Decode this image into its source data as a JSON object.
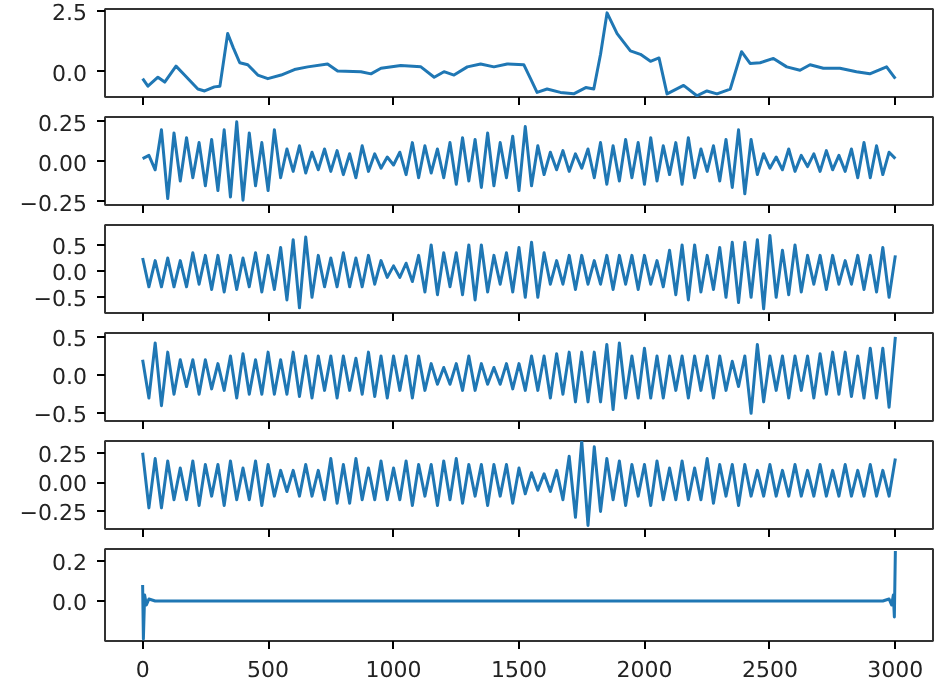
{
  "chart_data": [
    {
      "type": "line",
      "color": "#1f77b4",
      "tick_labels": "y",
      "xlim": [
        -150,
        3150
      ],
      "xticks": [
        0,
        500,
        1000,
        1500,
        2000,
        2500,
        3000
      ],
      "ylim": [
        -1.05,
        2.6
      ],
      "yticks": [
        {
          "value": 0,
          "label": "0.0"
        },
        {
          "value": 2.5,
          "label": "2.5"
        }
      ],
      "x": [
        0,
        21,
        61,
        88,
        133,
        167,
        220,
        247,
        286,
        308,
        339,
        361,
        387,
        419,
        459,
        499,
        552,
        605,
        658,
        737,
        777,
        870,
        910,
        950,
        1029,
        1109,
        1162,
        1201,
        1241,
        1294,
        1347,
        1400,
        1453,
        1519,
        1546,
        1572,
        1612,
        1665,
        1718,
        1766,
        1798,
        1825,
        1851,
        1891,
        1944,
        1984,
        2024,
        2058,
        2090,
        2156,
        2209,
        2249,
        2289,
        2342,
        2387,
        2421,
        2461,
        2514,
        2567,
        2620,
        2660,
        2713,
        2779,
        2845,
        2898,
        2965,
        3000
      ],
      "values": [
        -0.29,
        -0.6,
        -0.23,
        -0.43,
        0.23,
        -0.14,
        -0.72,
        -0.8,
        -0.63,
        -0.6,
        1.58,
        1.0,
        0.37,
        0.29,
        -0.14,
        -0.29,
        -0.14,
        0.09,
        0.2,
        0.32,
        0.03,
        0.0,
        -0.09,
        0.14,
        0.26,
        0.2,
        -0.23,
        0.0,
        -0.14,
        0.2,
        0.32,
        0.2,
        0.32,
        0.29,
        -0.29,
        -0.86,
        -0.72,
        -0.86,
        -0.92,
        -0.66,
        -0.72,
        0.72,
        2.44,
        1.58,
        0.86,
        0.72,
        0.43,
        0.57,
        -0.92,
        -0.57,
        -1.0,
        -0.8,
        -0.92,
        -0.72,
        0.83,
        0.34,
        0.37,
        0.55,
        0.2,
        0.06,
        0.29,
        0.14,
        0.14,
        0.0,
        -0.09,
        0.2,
        -0.29
      ]
    },
    {
      "type": "line",
      "color": "#1f77b4",
      "tick_labels": "y",
      "xlim": [
        -150,
        3150
      ],
      "xticks": [
        0,
        500,
        1000,
        1500,
        2000,
        2500,
        3000
      ],
      "ylim": [
        -0.27,
        0.28
      ],
      "yticks": [
        {
          "value": -0.25,
          "label": "−0.25"
        },
        {
          "value": 0,
          "label": "0.00"
        },
        {
          "value": 0.25,
          "label": "0.25"
        }
      ],
      "x": [
        0,
        25,
        50,
        75,
        100,
        125,
        150,
        175,
        200,
        225,
        250,
        275,
        300,
        325,
        350,
        375,
        400,
        425,
        450,
        475,
        500,
        525,
        550,
        575,
        600,
        625,
        650,
        675,
        700,
        725,
        750,
        775,
        800,
        825,
        850,
        875,
        900,
        925,
        950,
        975,
        1000,
        1025,
        1050,
        1075,
        1100,
        1125,
        1150,
        1175,
        1200,
        1225,
        1250,
        1275,
        1300,
        1325,
        1350,
        1375,
        1400,
        1425,
        1450,
        1475,
        1500,
        1525,
        1550,
        1575,
        1600,
        1625,
        1650,
        1675,
        1700,
        1725,
        1750,
        1775,
        1800,
        1825,
        1850,
        1875,
        1900,
        1925,
        1950,
        1975,
        2000,
        2025,
        2050,
        2075,
        2100,
        2125,
        2150,
        2175,
        2200,
        2225,
        2250,
        2275,
        2300,
        2325,
        2350,
        2375,
        2400,
        2425,
        2450,
        2475,
        2500,
        2525,
        2550,
        2575,
        2600,
        2625,
        2650,
        2675,
        2700,
        2725,
        2750,
        2775,
        2800,
        2825,
        2850,
        2875,
        2900,
        2925,
        2950,
        2975,
        3000
      ],
      "values": [
        0.02,
        0.04,
        -0.05,
        0.2,
        -0.23,
        0.18,
        -0.12,
        0.15,
        -0.1,
        0.12,
        -0.15,
        0.14,
        -0.18,
        0.2,
        -0.22,
        0.25,
        -0.24,
        0.18,
        -0.15,
        0.12,
        -0.18,
        0.2,
        -0.1,
        0.08,
        -0.06,
        0.1,
        -0.07,
        0.06,
        -0.05,
        0.08,
        -0.06,
        0.07,
        -0.08,
        0.05,
        -0.1,
        0.1,
        -0.06,
        0.05,
        -0.04,
        0.03,
        -0.02,
        0.06,
        -0.08,
        0.12,
        -0.1,
        0.1,
        -0.07,
        0.08,
        -0.1,
        0.12,
        -0.14,
        0.15,
        -0.12,
        0.14,
        -0.16,
        0.18,
        -0.15,
        0.12,
        -0.1,
        0.16,
        -0.18,
        0.22,
        -0.15,
        0.1,
        -0.08,
        0.06,
        -0.05,
        0.07,
        -0.06,
        0.05,
        -0.04,
        0.08,
        -0.1,
        0.12,
        -0.14,
        0.1,
        -0.12,
        0.14,
        -0.1,
        0.12,
        -0.14,
        0.15,
        -0.12,
        0.1,
        -0.08,
        0.12,
        -0.14,
        0.15,
        -0.1,
        0.08,
        -0.06,
        0.1,
        -0.12,
        0.14,
        -0.16,
        0.2,
        -0.2,
        0.14,
        -0.08,
        0.05,
        -0.04,
        0.03,
        -0.05,
        0.08,
        -0.06,
        0.04,
        -0.03,
        0.05,
        -0.06,
        0.07,
        -0.05,
        0.04,
        -0.06,
        0.08,
        -0.1,
        0.12,
        -0.1,
        0.1,
        -0.08,
        0.06,
        0.02
      ]
    },
    {
      "type": "line",
      "color": "#1f77b4",
      "tick_labels": "y",
      "xlim": [
        -150,
        3150
      ],
      "xticks": [
        0,
        500,
        1000,
        1500,
        2000,
        2500,
        3000
      ],
      "ylim": [
        -0.8,
        0.88
      ],
      "yticks": [
        {
          "value": -0.5,
          "label": "−0.5"
        },
        {
          "value": 0,
          "label": "0.0"
        },
        {
          "value": 0.5,
          "label": "0.5"
        }
      ],
      "x": [
        0,
        25,
        50,
        75,
        100,
        125,
        150,
        175,
        200,
        225,
        250,
        275,
        300,
        325,
        350,
        375,
        400,
        425,
        450,
        475,
        500,
        525,
        550,
        575,
        600,
        625,
        650,
        675,
        700,
        725,
        750,
        775,
        800,
        825,
        850,
        875,
        900,
        925,
        950,
        975,
        1000,
        1025,
        1050,
        1075,
        1100,
        1125,
        1150,
        1175,
        1200,
        1225,
        1250,
        1275,
        1300,
        1325,
        1350,
        1375,
        1400,
        1425,
        1450,
        1475,
        1500,
        1525,
        1550,
        1575,
        1600,
        1625,
        1650,
        1675,
        1700,
        1725,
        1750,
        1775,
        1800,
        1825,
        1850,
        1875,
        1900,
        1925,
        1950,
        1975,
        2000,
        2025,
        2050,
        2075,
        2100,
        2125,
        2150,
        2175,
        2200,
        2225,
        2250,
        2275,
        2300,
        2325,
        2350,
        2375,
        2400,
        2425,
        2450,
        2475,
        2500,
        2525,
        2550,
        2575,
        2600,
        2625,
        2650,
        2675,
        2700,
        2725,
        2750,
        2775,
        2800,
        2825,
        2850,
        2875,
        2900,
        2925,
        2950,
        2975,
        3000
      ],
      "values": [
        0.25,
        -0.3,
        0.2,
        -0.3,
        0.25,
        -0.3,
        0.2,
        -0.3,
        0.35,
        -0.25,
        0.3,
        -0.35,
        0.3,
        -0.4,
        0.3,
        -0.35,
        0.25,
        -0.3,
        0.35,
        -0.4,
        0.3,
        -0.35,
        0.45,
        -0.55,
        0.6,
        -0.7,
        0.65,
        -0.5,
        0.3,
        -0.3,
        0.25,
        -0.3,
        0.35,
        -0.3,
        0.25,
        -0.3,
        0.3,
        -0.25,
        0.2,
        -0.12,
        0.1,
        -0.12,
        0.15,
        -0.2,
        0.3,
        -0.4,
        0.5,
        -0.45,
        0.35,
        -0.3,
        0.35,
        -0.45,
        0.5,
        -0.55,
        0.5,
        -0.4,
        0.3,
        -0.25,
        0.35,
        -0.4,
        0.45,
        -0.5,
        0.55,
        -0.5,
        0.35,
        -0.25,
        0.2,
        -0.25,
        0.3,
        -0.35,
        0.3,
        -0.25,
        0.2,
        -0.25,
        0.3,
        -0.35,
        0.3,
        -0.25,
        0.3,
        -0.35,
        0.3,
        -0.25,
        0.2,
        -0.3,
        0.4,
        -0.45,
        0.5,
        -0.55,
        0.5,
        -0.4,
        0.3,
        -0.35,
        0.45,
        -0.5,
        0.55,
        -0.6,
        0.55,
        -0.5,
        0.6,
        -0.72,
        0.68,
        -0.5,
        0.4,
        -0.45,
        0.5,
        -0.4,
        0.3,
        -0.25,
        0.3,
        -0.35,
        0.3,
        -0.25,
        0.2,
        -0.25,
        0.3,
        -0.35,
        0.3,
        -0.4,
        0.45,
        -0.5,
        0.3
      ]
    },
    {
      "type": "line",
      "color": "#1f77b4",
      "tick_labels": "y",
      "xlim": [
        -150,
        3150
      ],
      "xticks": [
        0,
        500,
        1000,
        1500,
        2000,
        2500,
        3000
      ],
      "ylim": [
        -0.6,
        0.55
      ],
      "yticks": [
        {
          "value": -0.5,
          "label": "−0.5"
        },
        {
          "value": 0,
          "label": "0.0"
        },
        {
          "value": 0.5,
          "label": "0.5"
        }
      ],
      "x": [
        0,
        25,
        50,
        75,
        100,
        125,
        150,
        175,
        200,
        225,
        250,
        275,
        300,
        325,
        350,
        375,
        400,
        425,
        450,
        475,
        500,
        525,
        550,
        575,
        600,
        625,
        650,
        675,
        700,
        725,
        750,
        775,
        800,
        825,
        850,
        875,
        900,
        925,
        950,
        975,
        1000,
        1025,
        1050,
        1075,
        1100,
        1125,
        1150,
        1175,
        1200,
        1225,
        1250,
        1275,
        1300,
        1325,
        1350,
        1375,
        1400,
        1425,
        1450,
        1475,
        1500,
        1525,
        1550,
        1575,
        1600,
        1625,
        1650,
        1675,
        1700,
        1725,
        1750,
        1775,
        1800,
        1825,
        1850,
        1875,
        1900,
        1925,
        1950,
        1975,
        2000,
        2025,
        2050,
        2075,
        2100,
        2125,
        2150,
        2175,
        2200,
        2225,
        2250,
        2275,
        2300,
        2325,
        2350,
        2375,
        2400,
        2425,
        2450,
        2475,
        2500,
        2525,
        2550,
        2575,
        2600,
        2625,
        2650,
        2675,
        2700,
        2725,
        2750,
        2775,
        2800,
        2825,
        2850,
        2875,
        2900,
        2925,
        2950,
        2975,
        3000
      ],
      "values": [
        0.2,
        -0.3,
        0.42,
        -0.4,
        0.3,
        -0.25,
        0.2,
        -0.15,
        0.2,
        -0.25,
        0.2,
        -0.18,
        0.15,
        -0.2,
        0.25,
        -0.3,
        0.28,
        -0.25,
        0.2,
        -0.25,
        0.3,
        -0.25,
        0.2,
        -0.25,
        0.3,
        -0.28,
        0.25,
        -0.3,
        0.25,
        -0.2,
        0.25,
        -0.3,
        0.25,
        -0.2,
        0.22,
        -0.25,
        0.3,
        -0.28,
        0.25,
        -0.3,
        0.25,
        -0.2,
        0.25,
        -0.3,
        0.25,
        -0.2,
        0.15,
        -0.12,
        0.1,
        -0.12,
        0.15,
        -0.2,
        0.25,
        -0.2,
        0.15,
        -0.12,
        0.1,
        -0.12,
        0.15,
        -0.18,
        0.15,
        -0.2,
        0.25,
        -0.2,
        0.25,
        -0.3,
        0.28,
        -0.25,
        0.3,
        -0.35,
        0.3,
        -0.35,
        0.3,
        -0.35,
        0.4,
        -0.45,
        0.42,
        -0.3,
        0.25,
        -0.3,
        0.35,
        -0.3,
        0.25,
        -0.3,
        0.25,
        -0.2,
        0.25,
        -0.3,
        0.25,
        -0.2,
        0.25,
        -0.3,
        0.25,
        -0.2,
        0.18,
        -0.15,
        0.25,
        -0.5,
        0.4,
        -0.35,
        0.25,
        -0.2,
        0.25,
        -0.3,
        0.25,
        -0.2,
        0.25,
        -0.3,
        0.28,
        -0.25,
        0.3,
        -0.25,
        0.3,
        -0.28,
        0.25,
        -0.3,
        0.35,
        -0.3,
        0.35,
        -0.42,
        0.5
      ]
    },
    {
      "type": "line",
      "color": "#1f77b4",
      "tick_labels": "y",
      "xlim": [
        -150,
        3150
      ],
      "xticks": [
        0,
        500,
        1000,
        1500,
        2000,
        2500,
        3000
      ],
      "ylim": [
        -0.4,
        0.35
      ],
      "yticks": [
        {
          "value": -0.25,
          "label": "−0.25"
        },
        {
          "value": 0,
          "label": "0.00"
        },
        {
          "value": 0.25,
          "label": "0.25"
        }
      ],
      "x": [
        0,
        25,
        50,
        75,
        100,
        125,
        150,
        175,
        200,
        225,
        250,
        275,
        300,
        325,
        350,
        375,
        400,
        425,
        450,
        475,
        500,
        525,
        550,
        575,
        600,
        625,
        650,
        675,
        700,
        725,
        750,
        775,
        800,
        825,
        850,
        875,
        900,
        925,
        950,
        975,
        1000,
        1025,
        1050,
        1075,
        1100,
        1125,
        1150,
        1175,
        1200,
        1225,
        1250,
        1275,
        1300,
        1325,
        1350,
        1375,
        1400,
        1425,
        1450,
        1475,
        1500,
        1525,
        1550,
        1575,
        1600,
        1625,
        1650,
        1675,
        1700,
        1725,
        1750,
        1775,
        1800,
        1825,
        1850,
        1875,
        1900,
        1925,
        1950,
        1975,
        2000,
        2025,
        2050,
        2075,
        2100,
        2125,
        2150,
        2175,
        2200,
        2225,
        2250,
        2275,
        2300,
        2325,
        2350,
        2375,
        2400,
        2425,
        2450,
        2475,
        2500,
        2525,
        2550,
        2575,
        2600,
        2625,
        2650,
        2675,
        2700,
        2725,
        2750,
        2775,
        2800,
        2825,
        2850,
        2875,
        2900,
        2925,
        2950,
        2975,
        3000
      ],
      "values": [
        0.25,
        -0.22,
        0.2,
        -0.22,
        0.18,
        -0.15,
        0.12,
        -0.15,
        0.18,
        -0.2,
        0.15,
        -0.12,
        0.15,
        -0.2,
        0.18,
        -0.15,
        0.12,
        -0.15,
        0.18,
        -0.2,
        0.15,
        -0.12,
        0.1,
        -0.08,
        0.1,
        -0.12,
        0.15,
        -0.12,
        0.1,
        -0.15,
        0.2,
        -0.18,
        0.15,
        -0.18,
        0.2,
        -0.15,
        0.12,
        -0.15,
        0.18,
        -0.15,
        0.12,
        -0.15,
        0.18,
        -0.2,
        0.15,
        -0.12,
        0.15,
        -0.2,
        0.18,
        -0.15,
        0.2,
        -0.18,
        0.15,
        -0.12,
        0.15,
        -0.2,
        0.15,
        -0.12,
        0.15,
        -0.18,
        0.12,
        -0.1,
        0.08,
        -0.07,
        0.07,
        -0.08,
        0.1,
        -0.15,
        0.22,
        -0.3,
        0.35,
        -0.37,
        0.3,
        -0.25,
        0.2,
        -0.15,
        0.18,
        -0.2,
        0.15,
        -0.12,
        0.15,
        -0.2,
        0.18,
        -0.15,
        0.12,
        -0.15,
        0.18,
        -0.15,
        0.12,
        -0.15,
        0.2,
        -0.18,
        0.15,
        -0.12,
        0.15,
        -0.2,
        0.15,
        -0.12,
        0.1,
        -0.12,
        0.15,
        -0.12,
        0.1,
        -0.12,
        0.15,
        -0.12,
        0.1,
        -0.12,
        0.15,
        -0.12,
        0.1,
        -0.12,
        0.15,
        -0.12,
        0.1,
        -0.12,
        0.15,
        -0.12,
        0.1,
        -0.12,
        0.2
      ]
    },
    {
      "type": "line",
      "color": "#1f77b4",
      "xlim": [
        -150,
        3150
      ],
      "xticks": [
        0,
        500,
        1000,
        1500,
        2000,
        2500,
        3000
      ],
      "ylim": [
        -0.2,
        0.26
      ],
      "yticks": [
        {
          "value": 0,
          "label": "0.0"
        },
        {
          "value": 0.2,
          "label": "0.2"
        }
      ],
      "x": [
        0,
        3,
        8,
        15,
        25,
        50,
        100,
        500,
        1000,
        1500,
        2000,
        2500,
        2900,
        2950,
        2975,
        2985,
        2992,
        2996,
        3000
      ],
      "values": [
        0.08,
        -0.19,
        0.03,
        -0.02,
        0.01,
        0,
        0,
        0,
        0,
        0,
        0,
        0,
        0,
        0,
        0.01,
        -0.02,
        0.03,
        -0.08,
        0.25
      ]
    }
  ]
}
